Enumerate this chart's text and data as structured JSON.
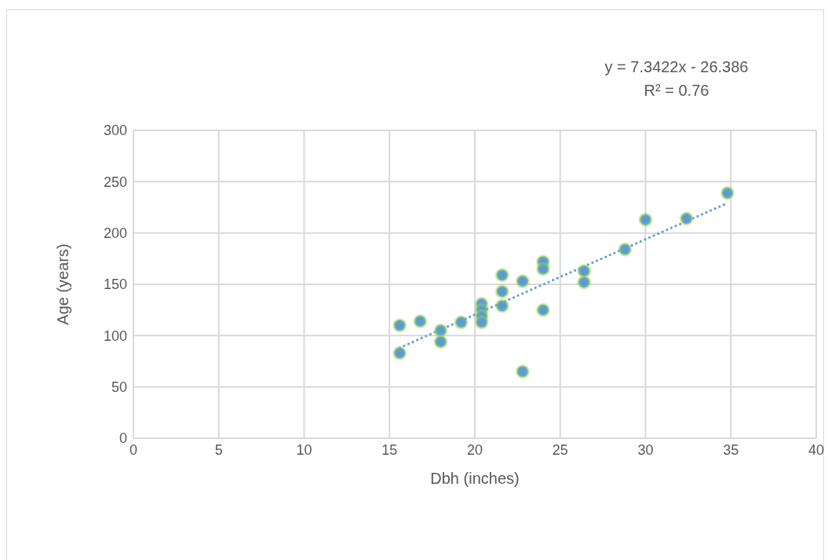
{
  "chart_data": {
    "type": "scatter",
    "xlabel": "Dbh (inches)",
    "ylabel": "Age (years)",
    "xlim": [
      0,
      40
    ],
    "xticks": [
      0,
      5,
      10,
      15,
      20,
      25,
      30,
      35,
      40
    ],
    "ylim": [
      0,
      300
    ],
    "yticks": [
      0,
      50,
      100,
      150,
      200,
      250,
      300
    ],
    "grid": true,
    "marker": "circle",
    "annotations": [
      "y = 7.3422x - 26.386",
      "R² = 0.76"
    ],
    "series": [
      {
        "color": "#5b9bd5",
        "x": [
          15.6,
          15.6,
          16.8,
          18.0,
          18.0,
          19.2,
          20.4,
          20.4,
          20.4,
          20.4,
          21.6,
          21.6,
          21.6,
          22.8,
          22.8,
          24.0,
          24.0,
          24.0,
          26.4,
          26.4,
          28.8,
          30.0,
          32.4,
          34.8
        ],
        "values": [
          83,
          110,
          114,
          105,
          94,
          113,
          131,
          125,
          119,
          113,
          159,
          143,
          129,
          153,
          65,
          172,
          165,
          125,
          163,
          152,
          184,
          213,
          214,
          239
        ]
      },
      {
        "type": "line",
        "color": "#5b9bd5",
        "line_style": "dotted",
        "marker": "none",
        "x": [
          15.6,
          34.8
        ],
        "values": [
          88.2,
          229.1
        ]
      }
    ]
  }
}
